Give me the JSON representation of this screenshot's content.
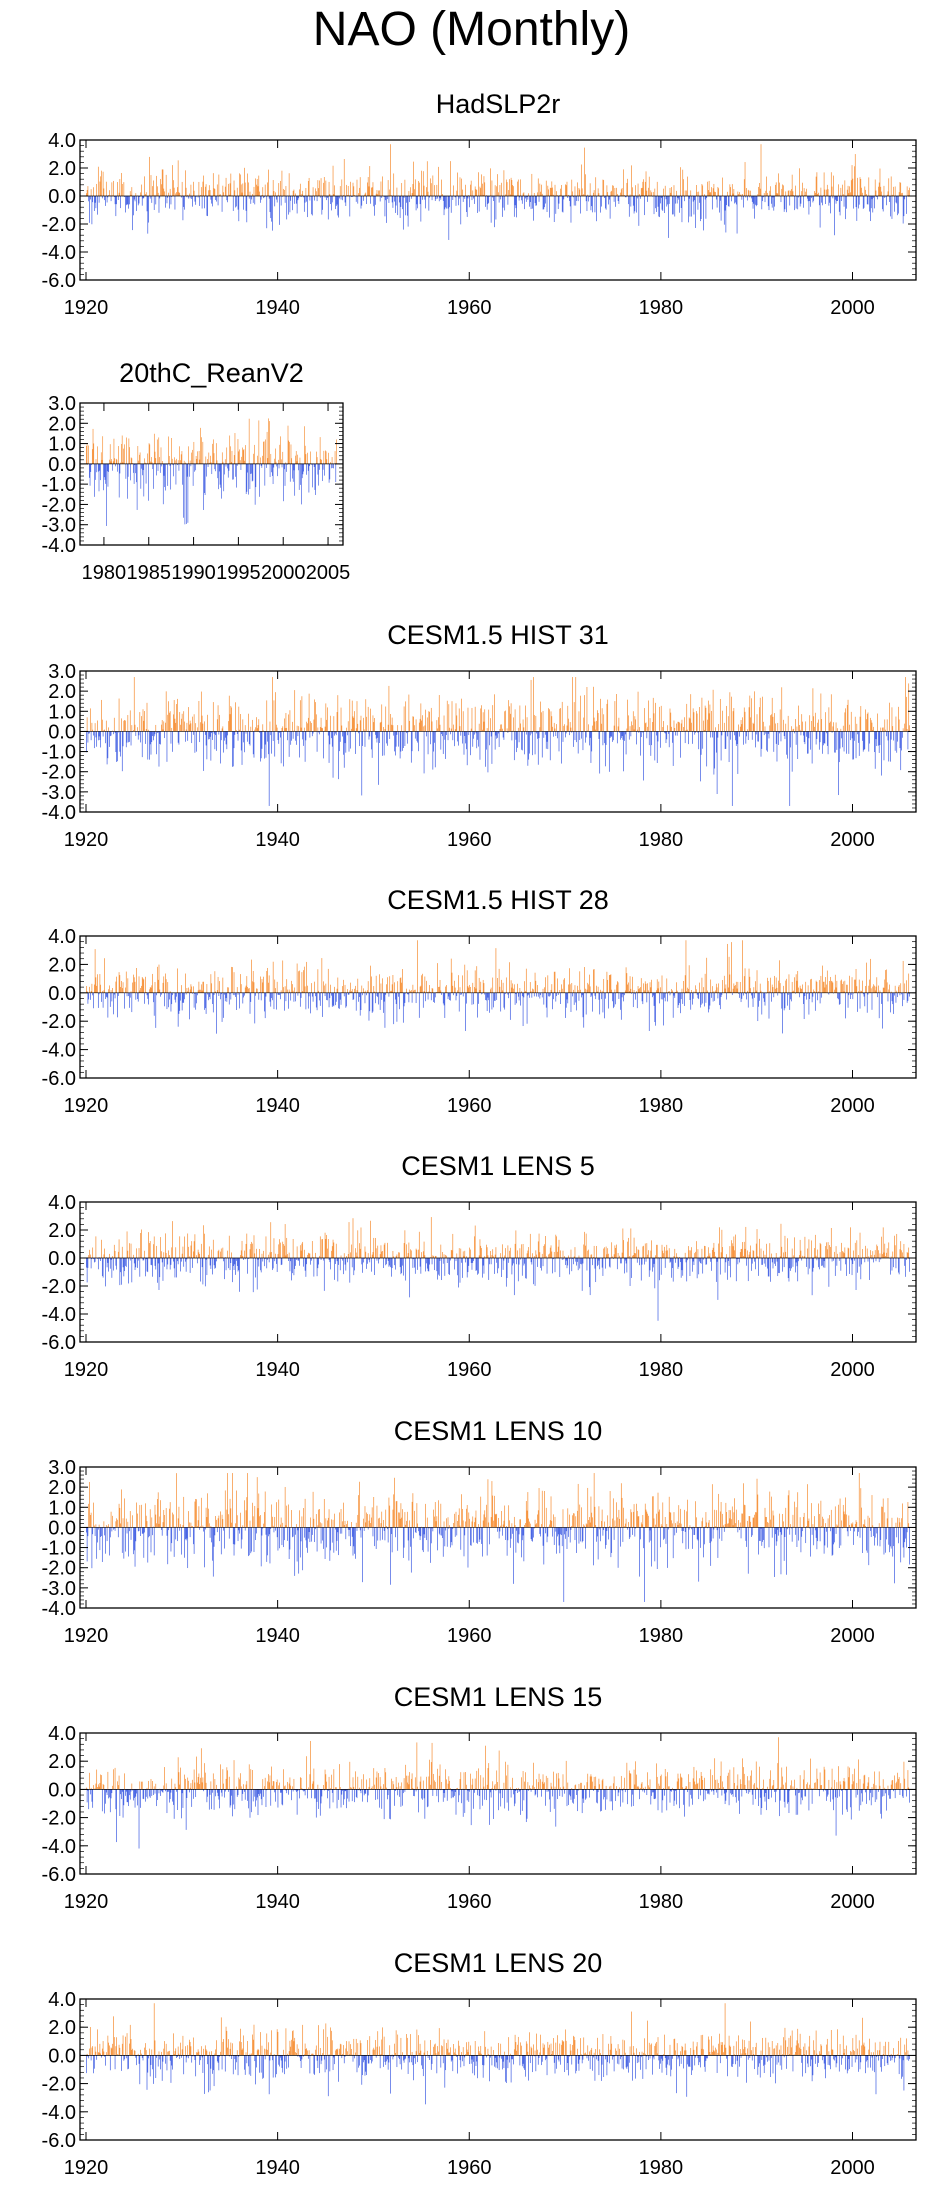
{
  "title": "NAO (Monthly)",
  "colors": {
    "positive": "#f5821e",
    "negative": "#2b4ce0",
    "frame": "#000000"
  },
  "chart_data": [
    {
      "type": "bar",
      "title": "HadSLP2r",
      "x_range": [
        1920,
        2006
      ],
      "xticks": [
        "1920",
        "1940",
        "1960",
        "1980",
        "2000"
      ],
      "ylim": [
        -6.0,
        4.0
      ],
      "yticks": [
        "4.0",
        "2.0",
        "0.0",
        "-2.0",
        "-4.0",
        "-6.0"
      ],
      "values": []
    },
    {
      "type": "bar",
      "title": "20thC_ReanV2",
      "x_range": [
        1978,
        2006
      ],
      "xticks": [
        "1980",
        "1985",
        "1990",
        "1995",
        "2000",
        "2005"
      ],
      "ylim": [
        -4.0,
        3.0
      ],
      "yticks": [
        "3.0",
        "2.0",
        "1.0",
        "0.0",
        "-1.0",
        "-2.0",
        "-3.0",
        "-4.0"
      ],
      "values": []
    },
    {
      "type": "bar",
      "title": "CESM1.5 HIST 31",
      "x_range": [
        1920,
        2006
      ],
      "xticks": [
        "1920",
        "1940",
        "1960",
        "1980",
        "2000"
      ],
      "ylim": [
        -4.0,
        3.0
      ],
      "yticks": [
        "3.0",
        "2.0",
        "1.0",
        "0.0",
        "-1.0",
        "-2.0",
        "-3.0",
        "-4.0"
      ],
      "values": []
    },
    {
      "type": "bar",
      "title": "CESM1.5 HIST 28",
      "x_range": [
        1920,
        2006
      ],
      "xticks": [
        "1920",
        "1940",
        "1960",
        "1980",
        "2000"
      ],
      "ylim": [
        -6.0,
        4.0
      ],
      "yticks": [
        "4.0",
        "2.0",
        "0.0",
        "-2.0",
        "-4.0",
        "-6.0"
      ],
      "values": []
    },
    {
      "type": "bar",
      "title": "CESM1 LENS 5",
      "x_range": [
        1920,
        2006
      ],
      "xticks": [
        "1920",
        "1940",
        "1960",
        "1980",
        "2000"
      ],
      "ylim": [
        -6.0,
        4.0
      ],
      "yticks": [
        "4.0",
        "2.0",
        "0.0",
        "-2.0",
        "-4.0",
        "-6.0"
      ],
      "values": []
    },
    {
      "type": "bar",
      "title": "CESM1 LENS 10",
      "x_range": [
        1920,
        2006
      ],
      "xticks": [
        "1920",
        "1940",
        "1960",
        "1980",
        "2000"
      ],
      "ylim": [
        -4.0,
        3.0
      ],
      "yticks": [
        "3.0",
        "2.0",
        "1.0",
        "0.0",
        "-1.0",
        "-2.0",
        "-3.0",
        "-4.0"
      ],
      "values": []
    },
    {
      "type": "bar",
      "title": "CESM1 LENS 15",
      "x_range": [
        1920,
        2006
      ],
      "xticks": [
        "1920",
        "1940",
        "1960",
        "1980",
        "2000"
      ],
      "ylim": [
        -6.0,
        4.0
      ],
      "yticks": [
        "4.0",
        "2.0",
        "0.0",
        "-2.0",
        "-4.0",
        "-6.0"
      ],
      "values": []
    },
    {
      "type": "bar",
      "title": "CESM1 LENS 20",
      "x_range": [
        1920,
        2006
      ],
      "xticks": [
        "1920",
        "1940",
        "1960",
        "1980",
        "2000"
      ],
      "ylim": [
        -6.0,
        4.0
      ],
      "yticks": [
        "4.0",
        "2.0",
        "0.0",
        "-2.0",
        "-4.0",
        "-6.0"
      ],
      "values": []
    }
  ]
}
